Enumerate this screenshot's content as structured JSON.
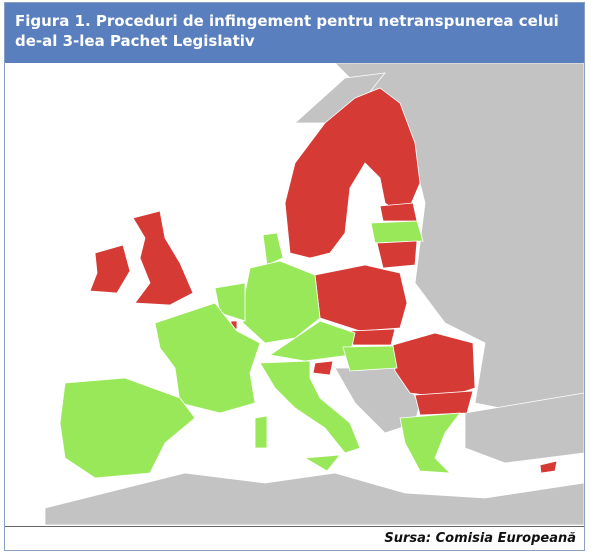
{
  "header": {
    "title": "Figura 1. Proceduri de infingement pentru netranspunerea celui de-al 3-lea Pachet Legislativ"
  },
  "footer": {
    "source": "Sursa: Comisia Europeană"
  }
}
